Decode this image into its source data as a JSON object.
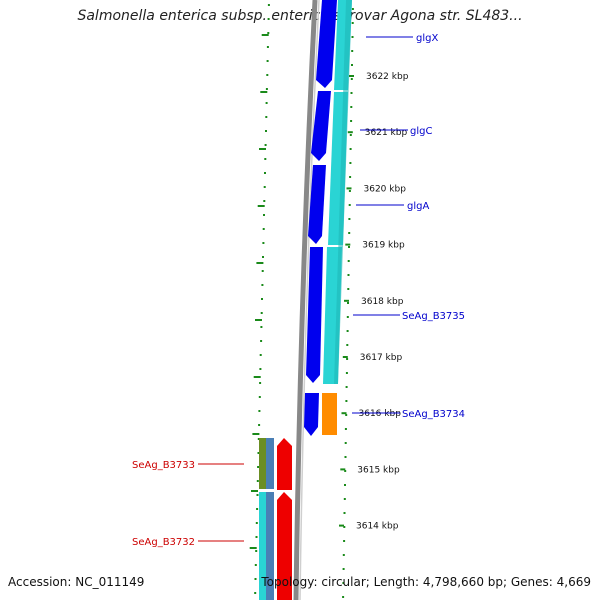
{
  "title": "Salmonella enterica subsp. enterica serovar Agona str. SL483...",
  "accession_label": "Accession: NC_011149",
  "topology_label": "Topology: circular; Length: 4,798,660 bp; Genes: 4,669",
  "colors": {
    "backbone": "#888888",
    "tick": "#1a8a1a",
    "forward_cds": "#0000ee",
    "reverse_cds": "#ee0000",
    "cyan_track": "#2ad4d4",
    "orange_feature": "#ff8c00",
    "label_forward": "#0000cc",
    "label_reverse": "#cc0000"
  },
  "kbp_labels": [
    {
      "value": 3622,
      "text": "3622 kbp"
    },
    {
      "value": 3621,
      "text": "3621 kbp"
    },
    {
      "value": 3620,
      "text": "3620 kbp"
    },
    {
      "value": 3619,
      "text": "3619 kbp"
    },
    {
      "value": 3618,
      "text": "3618 kbp"
    },
    {
      "value": 3617,
      "text": "3617 kbp"
    },
    {
      "value": 3616,
      "text": "3616 kbp"
    },
    {
      "value": 3615,
      "text": "3615 kbp"
    },
    {
      "value": 3614,
      "text": "3614 kbp"
    }
  ],
  "gene_labels": [
    {
      "name": "glgX",
      "strand": "forward"
    },
    {
      "name": "glgC",
      "strand": "forward"
    },
    {
      "name": "glgA",
      "strand": "forward"
    },
    {
      "name": "SeAg_B3735",
      "strand": "forward"
    },
    {
      "name": "SeAg_B3734",
      "strand": "forward"
    },
    {
      "name": "SeAg_B3733",
      "strand": "reverse"
    },
    {
      "name": "SeAg_B3732",
      "strand": "reverse"
    }
  ]
}
